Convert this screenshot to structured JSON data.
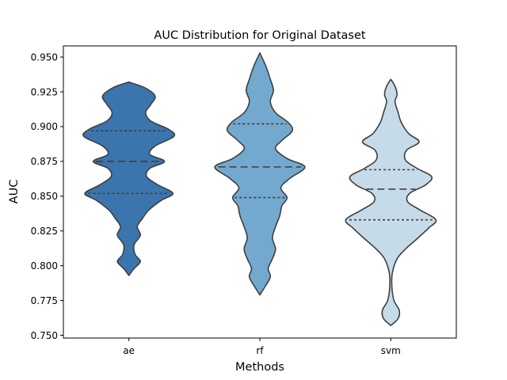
{
  "chart_data": {
    "type": "violin",
    "title": "AUC Distribution for Original Dataset",
    "xlabel": "Methods",
    "ylabel": "AUC",
    "categories": [
      "ae",
      "rf",
      "svm"
    ],
    "ylim": [
      0.748,
      0.958
    ],
    "yticks": [
      0.75,
      0.775,
      0.8,
      0.825,
      0.85,
      0.875,
      0.9,
      0.925,
      0.95
    ],
    "ytick_labels": [
      "0.750",
      "0.775",
      "0.800",
      "0.825",
      "0.850",
      "0.875",
      "0.900",
      "0.925",
      "0.950"
    ],
    "grid": false,
    "colors": [
      "#3a75ae",
      "#73a9cf",
      "#c6dbea"
    ],
    "series": [
      {
        "category": "ae",
        "q1": 0.852,
        "median": 0.875,
        "q3": 0.897,
        "density": [
          [
            0.793,
            0.0
          ],
          [
            0.798,
            0.1
          ],
          [
            0.803,
            0.22
          ],
          [
            0.808,
            0.12
          ],
          [
            0.815,
            0.1
          ],
          [
            0.822,
            0.22
          ],
          [
            0.828,
            0.16
          ],
          [
            0.834,
            0.26
          ],
          [
            0.84,
            0.38
          ],
          [
            0.847,
            0.62
          ],
          [
            0.852,
            0.84
          ],
          [
            0.858,
            0.56
          ],
          [
            0.864,
            0.34
          ],
          [
            0.87,
            0.4
          ],
          [
            0.875,
            0.68
          ],
          [
            0.88,
            0.4
          ],
          [
            0.886,
            0.5
          ],
          [
            0.893,
            0.86
          ],
          [
            0.898,
            0.76
          ],
          [
            0.904,
            0.42
          ],
          [
            0.91,
            0.32
          ],
          [
            0.916,
            0.42
          ],
          [
            0.922,
            0.5
          ],
          [
            0.928,
            0.3
          ],
          [
            0.932,
            0.0
          ]
        ]
      },
      {
        "category": "rf",
        "q1": 0.849,
        "median": 0.871,
        "q3": 0.902,
        "density": [
          [
            0.779,
            0.0
          ],
          [
            0.785,
            0.1
          ],
          [
            0.792,
            0.2
          ],
          [
            0.798,
            0.16
          ],
          [
            0.805,
            0.24
          ],
          [
            0.812,
            0.3
          ],
          [
            0.82,
            0.24
          ],
          [
            0.828,
            0.3
          ],
          [
            0.836,
            0.38
          ],
          [
            0.843,
            0.42
          ],
          [
            0.849,
            0.52
          ],
          [
            0.856,
            0.4
          ],
          [
            0.863,
            0.58
          ],
          [
            0.871,
            0.86
          ],
          [
            0.877,
            0.52
          ],
          [
            0.884,
            0.3
          ],
          [
            0.89,
            0.42
          ],
          [
            0.897,
            0.62
          ],
          [
            0.903,
            0.54
          ],
          [
            0.91,
            0.3
          ],
          [
            0.918,
            0.2
          ],
          [
            0.926,
            0.26
          ],
          [
            0.934,
            0.2
          ],
          [
            0.943,
            0.12
          ],
          [
            0.953,
            0.0
          ]
        ]
      },
      {
        "category": "svm",
        "q1": 0.833,
        "median": 0.855,
        "q3": 0.869,
        "density": [
          [
            0.757,
            0.0
          ],
          [
            0.762,
            0.14
          ],
          [
            0.768,
            0.16
          ],
          [
            0.775,
            0.06
          ],
          [
            0.785,
            0.02
          ],
          [
            0.795,
            0.03
          ],
          [
            0.805,
            0.12
          ],
          [
            0.812,
            0.28
          ],
          [
            0.82,
            0.52
          ],
          [
            0.827,
            0.72
          ],
          [
            0.833,
            0.86
          ],
          [
            0.84,
            0.56
          ],
          [
            0.846,
            0.32
          ],
          [
            0.852,
            0.36
          ],
          [
            0.858,
            0.66
          ],
          [
            0.864,
            0.78
          ],
          [
            0.87,
            0.5
          ],
          [
            0.876,
            0.28
          ],
          [
            0.883,
            0.3
          ],
          [
            0.889,
            0.54
          ],
          [
            0.895,
            0.34
          ],
          [
            0.903,
            0.2
          ],
          [
            0.91,
            0.14
          ],
          [
            0.918,
            0.08
          ],
          [
            0.923,
            0.12
          ],
          [
            0.929,
            0.08
          ],
          [
            0.934,
            0.0
          ]
        ]
      }
    ]
  }
}
